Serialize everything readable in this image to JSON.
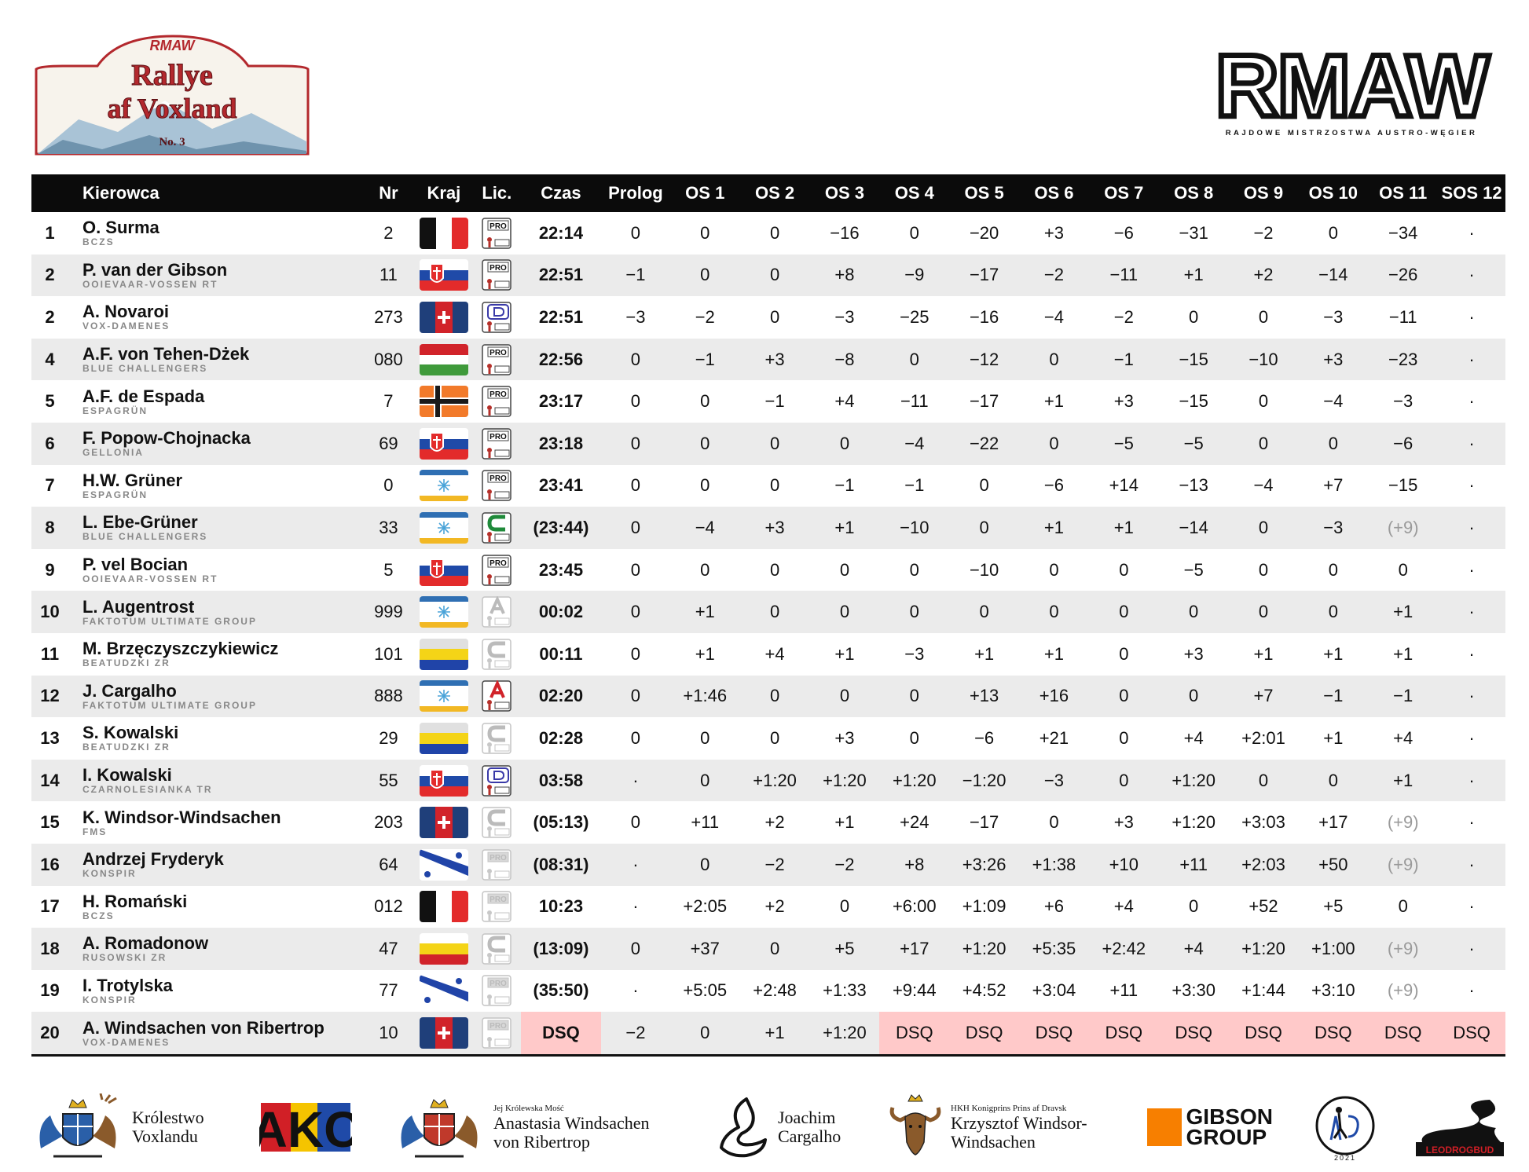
{
  "header": {
    "event_logo": {
      "brand": "RMAW",
      "title_line1": "Rallye",
      "title_line2": "af Voxland",
      "number": "No. 3"
    },
    "brand_logo": {
      "wordmark": "RMAW",
      "tagline": "RAJDOWE MISTRZOSTWA AUSTRO-WĘGIER"
    }
  },
  "table": {
    "columns": [
      "",
      "Kierowca",
      "Nr",
      "Kraj",
      "Lic.",
      "Czas",
      "Prolog",
      "OS 1",
      "OS 2",
      "OS 3",
      "OS 4",
      "OS 5",
      "OS 6",
      "OS 7",
      "OS 8",
      "OS 9",
      "OS 10",
      "OS 11",
      "SOS 12"
    ],
    "rows": [
      {
        "pos": "1",
        "name": "O. Surma",
        "team": "BCZS",
        "nr": "2",
        "flag": "flag-black-white-red",
        "lic": "pro",
        "time": "22:14",
        "stages": [
          "0",
          "0",
          "0",
          "−16",
          "0",
          "−20",
          "+3",
          "−6",
          "−31",
          "−2",
          "0",
          "−34",
          "·"
        ]
      },
      {
        "pos": "2",
        "name": "P. van der Gibson",
        "team": "OOIEVAAR-VOSSEN RT",
        "nr": "11",
        "flag": "flag-white-red-blue-shield",
        "lic": "pro",
        "time": "22:51",
        "stages": [
          "−1",
          "0",
          "0",
          "+8",
          "−9",
          "−17",
          "−2",
          "−11",
          "+1",
          "+2",
          "−14",
          "−26",
          "·"
        ]
      },
      {
        "pos": "2",
        "name": "A. Novaroi",
        "team": "VOX-DAMENES",
        "nr": "273",
        "flag": "flag-blue-red-cross",
        "lic": "d",
        "time": "22:51",
        "stages": [
          "−3",
          "−2",
          "0",
          "−3",
          "−25",
          "−16",
          "−4",
          "−2",
          "0",
          "0",
          "−3",
          "−11",
          "·"
        ]
      },
      {
        "pos": "4",
        "name": "A.F. von Tehen-Dżek",
        "team": "BLUE CHALLENGERS",
        "nr": "080",
        "flag": "flag-red-white-green",
        "lic": "pro",
        "time": "22:56",
        "stages": [
          "0",
          "−1",
          "+3",
          "−8",
          "0",
          "−12",
          "0",
          "−1",
          "−15",
          "−10",
          "+3",
          "−23",
          "·"
        ]
      },
      {
        "pos": "5",
        "name": "A.F. de Espada",
        "team": "ESPAGRÜN",
        "nr": "7",
        "flag": "flag-orange-cross",
        "lic": "pro",
        "time": "23:17",
        "stages": [
          "0",
          "0",
          "−1",
          "+4",
          "−11",
          "−17",
          "+1",
          "+3",
          "−15",
          "0",
          "−4",
          "−3",
          "·"
        ]
      },
      {
        "pos": "6",
        "name": "F. Popow-Chojnacka",
        "team": "GELLONIA",
        "nr": "69",
        "flag": "flag-white-red-blue-shield",
        "lic": "pro",
        "time": "23:18",
        "stages": [
          "0",
          "0",
          "0",
          "0",
          "−4",
          "−22",
          "0",
          "−5",
          "−5",
          "0",
          "0",
          "−6",
          "·"
        ]
      },
      {
        "pos": "7",
        "name": "H.W. Grüner",
        "team": "ESPAGRÜN",
        "nr": "0",
        "flag": "flag-blue-yellow-star",
        "lic": "pro",
        "time": "23:41",
        "stages": [
          "0",
          "0",
          "0",
          "−1",
          "−1",
          "0",
          "−6",
          "+14",
          "−13",
          "−4",
          "+7",
          "−15",
          "·"
        ]
      },
      {
        "pos": "8",
        "name": "L. Ebe-Grüner",
        "team": "BLUE CHALLENGERS",
        "nr": "33",
        "flag": "flag-blue-yellow-star",
        "lic": "c-green",
        "time": "(23:44)",
        "stages": [
          "0",
          "−4",
          "+3",
          "+1",
          "−10",
          "0",
          "+1",
          "+1",
          "−14",
          "0",
          "−3",
          "(+9)",
          "·"
        ]
      },
      {
        "pos": "9",
        "name": "P. vel Bocian",
        "team": "OOIEVAAR-VOSSEN RT",
        "nr": "5",
        "flag": "flag-white-red-blue-shield",
        "lic": "pro",
        "time": "23:45",
        "stages": [
          "0",
          "0",
          "0",
          "0",
          "0",
          "−10",
          "0",
          "0",
          "−5",
          "0",
          "0",
          "0",
          "·"
        ]
      },
      {
        "pos": "10",
        "name": "L. Augentrost",
        "team": "FAKTOTUM ULTIMATE GROUP",
        "nr": "999",
        "flag": "flag-blue-yellow-star",
        "lic": "a-grey",
        "time": "00:02",
        "stages": [
          "0",
          "+1",
          "0",
          "0",
          "0",
          "0",
          "0",
          "0",
          "0",
          "0",
          "0",
          "+1",
          "·"
        ]
      },
      {
        "pos": "11",
        "name": "M. Brzęczyszczykiewicz",
        "team": "BEATUDZKI ZR",
        "nr": "101",
        "flag": "flag-white-yellow-blue",
        "lic": "c-grey",
        "time": "00:11",
        "stages": [
          "0",
          "+1",
          "+4",
          "+1",
          "−3",
          "+1",
          "+1",
          "0",
          "+3",
          "+1",
          "+1",
          "+1",
          "·"
        ]
      },
      {
        "pos": "12",
        "name": "J. Cargalho",
        "team": "FAKTOTUM ULTIMATE GROUP",
        "nr": "888",
        "flag": "flag-blue-yellow-star",
        "lic": "a-red",
        "time": "02:20",
        "stages": [
          "0",
          "+1:46",
          "0",
          "0",
          "0",
          "+13",
          "+16",
          "0",
          "0",
          "+7",
          "−1",
          "−1",
          "·"
        ]
      },
      {
        "pos": "13",
        "name": "S. Kowalski",
        "team": "BEATUDZKI ZR",
        "nr": "29",
        "flag": "flag-white-yellow-blue",
        "lic": "c-grey",
        "time": "02:28",
        "stages": [
          "0",
          "0",
          "0",
          "+3",
          "0",
          "−6",
          "+21",
          "0",
          "+4",
          "+2:01",
          "+1",
          "+4",
          "·"
        ]
      },
      {
        "pos": "14",
        "name": "I. Kowalski",
        "team": "CZARNOLESIANKA TR",
        "nr": "55",
        "flag": "flag-white-red-blue-shield",
        "lic": "d",
        "time": "03:58",
        "stages": [
          "·",
          "0",
          "+1:20",
          "+1:20",
          "+1:20",
          "−1:20",
          "−3",
          "0",
          "+1:20",
          "0",
          "0",
          "+1",
          "·"
        ]
      },
      {
        "pos": "15",
        "name": "K. Windsor-Windsachen",
        "team": "FMS",
        "nr": "203",
        "flag": "flag-blue-red-cross",
        "lic": "c-grey",
        "time": "(05:13)",
        "stages": [
          "0",
          "+11",
          "+2",
          "+1",
          "+24",
          "−17",
          "0",
          "+3",
          "+1:20",
          "+3:03",
          "+17",
          "(+9)",
          "·"
        ]
      },
      {
        "pos": "16",
        "name": "Andrzej Fryderyk",
        "team": "KONSPIR",
        "nr": "64",
        "flag": "flag-diagonal-stars",
        "lic": "pro-grey",
        "time": "(08:31)",
        "stages": [
          "·",
          "0",
          "−2",
          "−2",
          "+8",
          "+3:26",
          "+1:38",
          "+10",
          "+11",
          "+2:03",
          "+50",
          "(+9)",
          "·"
        ]
      },
      {
        "pos": "17",
        "name": "H. Romański",
        "team": "BCZS",
        "nr": "012",
        "flag": "flag-black-white-red",
        "lic": "pro-grey",
        "time": "10:23",
        "stages": [
          "·",
          "+2:05",
          "+2",
          "0",
          "+6:00",
          "+1:09",
          "+6",
          "+4",
          "0",
          "+52",
          "+5",
          "0",
          "·"
        ]
      },
      {
        "pos": "18",
        "name": "A. Romadonow",
        "team": "RUSOWSKI ZR",
        "nr": "47",
        "flag": "flag-white-yellow-red",
        "lic": "c-grey",
        "time": "(13:09)",
        "stages": [
          "0",
          "+37",
          "0",
          "+5",
          "+17",
          "+1:20",
          "+5:35",
          "+2:42",
          "+4",
          "+1:20",
          "+1:00",
          "(+9)",
          "·"
        ]
      },
      {
        "pos": "19",
        "name": "I. Trotylska",
        "team": "KONSPIR",
        "nr": "77",
        "flag": "flag-diagonal-stars",
        "lic": "pro-grey",
        "time": "(35:50)",
        "stages": [
          "·",
          "+5:05",
          "+2:48",
          "+1:33",
          "+9:44",
          "+4:52",
          "+3:04",
          "+11",
          "+3:30",
          "+1:44",
          "+3:10",
          "(+9)",
          "·"
        ]
      },
      {
        "pos": "20",
        "name": "A. Windsachen von Ribertrop",
        "team": "VOX-DAMENES",
        "nr": "10",
        "flag": "flag-blue-red-cross",
        "lic": "pro-grey",
        "time": "DSQ",
        "stages": [
          "−2",
          "0",
          "+1",
          "+1:20",
          "DSQ",
          "DSQ",
          "DSQ",
          "DSQ",
          "DSQ",
          "DSQ",
          "DSQ",
          "DSQ",
          "DSQ"
        ]
      }
    ]
  },
  "sponsors": [
    {
      "id": "krolestwo",
      "lines": [
        "Królestwo",
        "Voxlandu"
      ],
      "icon": "coat-of-arms-icon"
    },
    {
      "id": "akc",
      "logo_text": "AKC",
      "icon": "akc-logo"
    },
    {
      "id": "anastasia",
      "small": "Jej Królewska Mość",
      "lines": [
        "Anastasia Windsachen",
        "von Ribertrop"
      ],
      "icon": "coat-of-arms-icon"
    },
    {
      "id": "joachim",
      "lines": [
        "Joachim",
        "Cargalho"
      ],
      "icon": "fox-logo-icon"
    },
    {
      "id": "krzysztof",
      "small": "HKH Konigprins Prins af Dravsk",
      "lines": [
        "Krzysztof Windsor-",
        "Windsachen"
      ],
      "icon": "moose-crest-icon"
    },
    {
      "id": "gibson",
      "lines": [
        "GIBSON",
        "GROUP"
      ],
      "icon": "orange-square-logo"
    },
    {
      "id": "badge",
      "logo_text": "2021",
      "icon": "round-badge-logo"
    },
    {
      "id": "leodrogbud",
      "logo_text": "LEODROGBUD",
      "icon": "road-logo"
    }
  ],
  "colors": {
    "header_bg": "#0b0b0b",
    "stripe": "#ebebeb",
    "dsq_bg": "#ffc9c9",
    "muted": "#9a9a9a",
    "rmaw_red": "#c0392b",
    "gibson_orange": "#f77f00"
  }
}
